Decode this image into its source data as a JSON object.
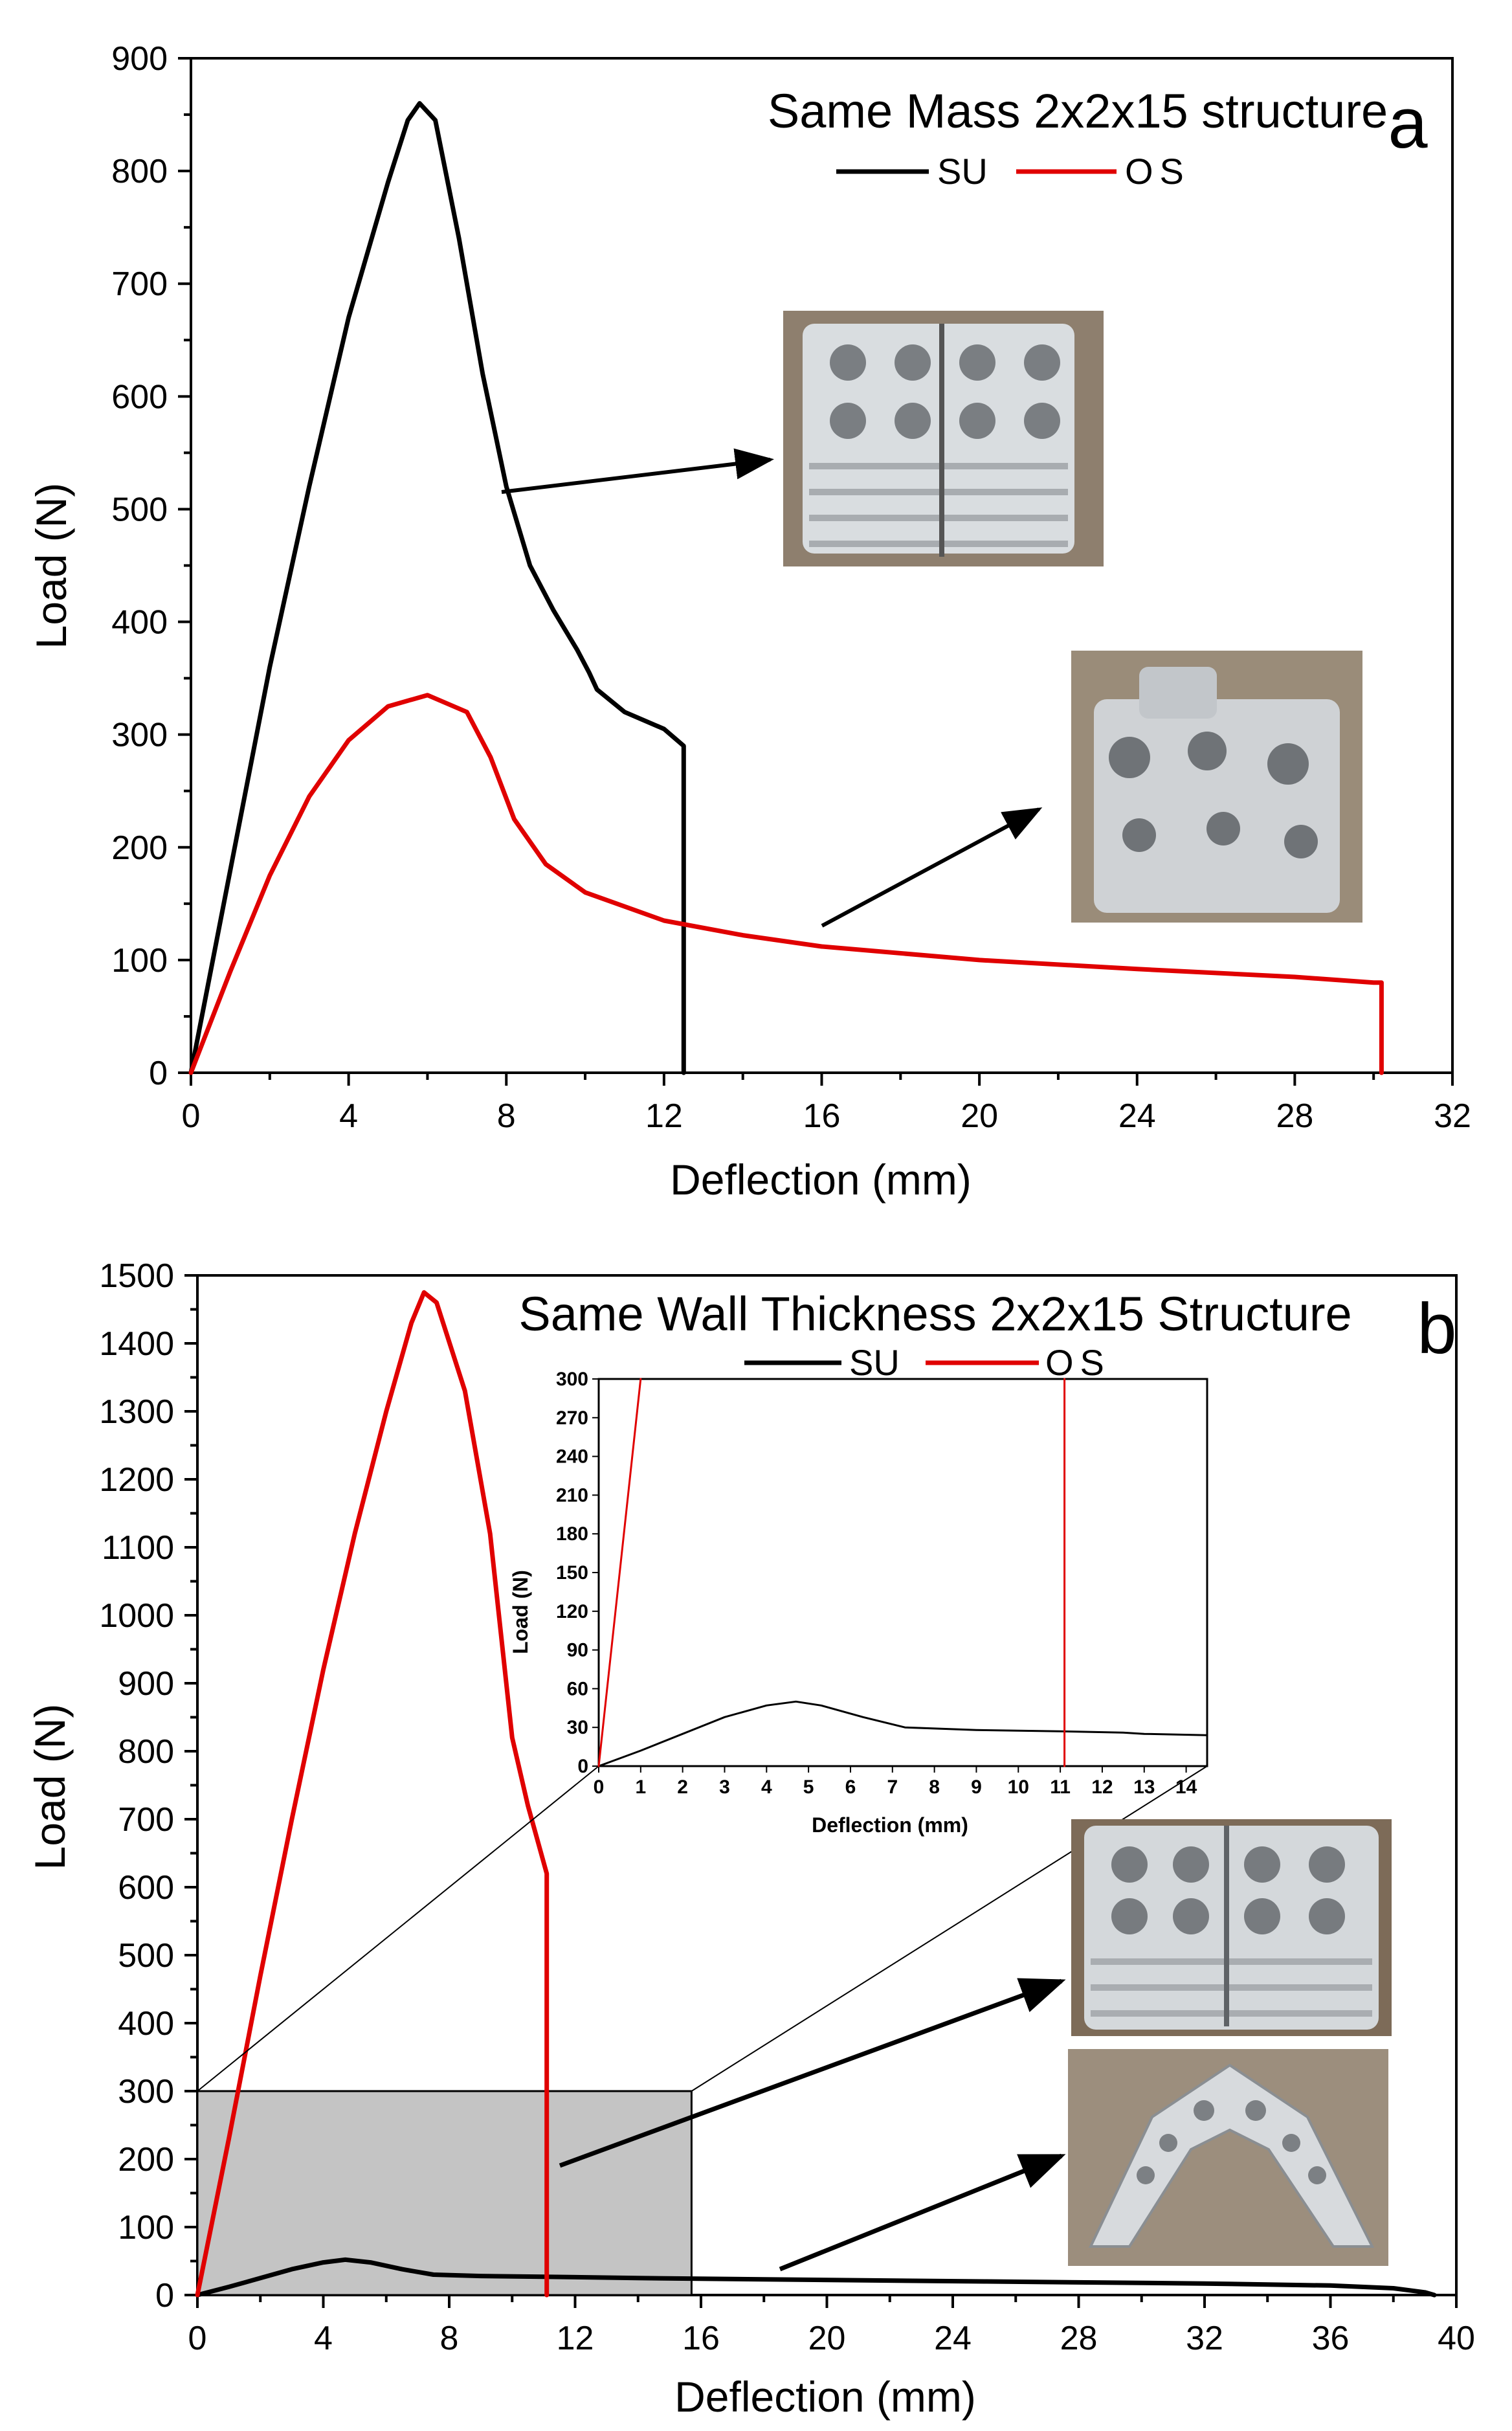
{
  "chart_data": [
    {
      "panel": "a",
      "type": "line",
      "title": "Same Mass 2x2x15 structure",
      "xlabel": "Deflection (mm)",
      "ylabel": "Load (N)",
      "xlim": [
        0,
        32
      ],
      "ylim": [
        0,
        900
      ],
      "xticks": [
        0,
        4,
        8,
        12,
        16,
        20,
        24,
        28,
        32
      ],
      "yticks": [
        0,
        100,
        200,
        300,
        400,
        500,
        600,
        700,
        800,
        900
      ],
      "legend": [
        "SU",
        "OS"
      ],
      "series": [
        {
          "name": "SU",
          "color": "#000000",
          "points": [
            [
              0,
              0
            ],
            [
              1,
              180
            ],
            [
              2,
              360
            ],
            [
              3,
              520
            ],
            [
              4,
              670
            ],
            [
              5,
              790
            ],
            [
              5.5,
              845
            ],
            [
              5.8,
              860
            ],
            [
              6.2,
              845
            ],
            [
              6.8,
              740
            ],
            [
              7.4,
              620
            ],
            [
              8,
              520
            ],
            [
              8.6,
              450
            ],
            [
              9.2,
              410
            ],
            [
              9.8,
              375
            ],
            [
              10.1,
              355
            ],
            [
              10.3,
              340
            ],
            [
              11,
              320
            ],
            [
              12,
              305
            ],
            [
              12.5,
              290
            ],
            [
              12.5,
              0
            ]
          ]
        },
        {
          "name": "OS",
          "color": "#e00000",
          "points": [
            [
              0,
              0
            ],
            [
              1,
              90
            ],
            [
              2,
              175
            ],
            [
              3,
              245
            ],
            [
              4,
              295
            ],
            [
              5,
              325
            ],
            [
              6,
              335
            ],
            [
              7,
              320
            ],
            [
              7.6,
              280
            ],
            [
              8.2,
              225
            ],
            [
              9,
              185
            ],
            [
              10,
              160
            ],
            [
              12,
              135
            ],
            [
              14,
              122
            ],
            [
              16,
              112
            ],
            [
              20,
              100
            ],
            [
              24,
              92
            ],
            [
              28,
              85
            ],
            [
              30,
              80
            ],
            [
              30.2,
              80
            ],
            [
              30.2,
              0
            ]
          ]
        }
      ]
    },
    {
      "panel": "b",
      "type": "line",
      "title": "Same Wall Thickness 2x2x15 Structure",
      "xlabel": "Deflection (mm)",
      "ylabel": "Load (N)",
      "xlim": [
        0,
        40
      ],
      "ylim": [
        0,
        1500
      ],
      "xticks": [
        0,
        4,
        8,
        12,
        16,
        20,
        24,
        28,
        32,
        36,
        40
      ],
      "yticks": [
        0,
        100,
        200,
        300,
        400,
        500,
        600,
        700,
        800,
        900,
        1000,
        1100,
        1200,
        1300,
        1400,
        1500
      ],
      "legend": [
        "SU",
        "OS"
      ],
      "zoom_region": {
        "x": [
          0,
          15.7
        ],
        "y": [
          0,
          300
        ]
      },
      "series": [
        {
          "name": "SU",
          "color": "#000000",
          "points": [
            [
              0,
              0
            ],
            [
              1,
              12
            ],
            [
              2,
              25
            ],
            [
              3,
              38
            ],
            [
              4,
              48
            ],
            [
              4.7,
              52
            ],
            [
              5.5,
              48
            ],
            [
              6.5,
              38
            ],
            [
              7.5,
              30
            ],
            [
              9,
              28
            ],
            [
              11,
              27
            ],
            [
              14,
              25
            ],
            [
              18,
              23
            ],
            [
              25,
              20
            ],
            [
              32,
              17
            ],
            [
              36,
              14
            ],
            [
              38,
              10
            ],
            [
              39,
              4
            ],
            [
              39.3,
              0
            ]
          ]
        },
        {
          "name": "OS",
          "color": "#e00000",
          "points": [
            [
              0,
              0
            ],
            [
              1,
              230
            ],
            [
              2,
              470
            ],
            [
              3,
              700
            ],
            [
              4,
              920
            ],
            [
              5,
              1120
            ],
            [
              6,
              1300
            ],
            [
              6.8,
              1430
            ],
            [
              7.2,
              1475
            ],
            [
              7.6,
              1460
            ],
            [
              8.5,
              1330
            ],
            [
              9.3,
              1120
            ],
            [
              10,
              820
            ],
            [
              10.5,
              720
            ],
            [
              11.1,
              620
            ],
            [
              11.1,
              0
            ]
          ]
        }
      ],
      "inset": {
        "xlabel": "Deflection (mm)",
        "ylabel": "Load (N)",
        "xlim": [
          0,
          14.5
        ],
        "ylim": [
          0,
          300
        ],
        "xticks": [
          0,
          1,
          2,
          3,
          4,
          5,
          6,
          7,
          8,
          9,
          10,
          11,
          12,
          13,
          14
        ],
        "yticks": [
          0,
          30,
          60,
          90,
          120,
          150,
          180,
          210,
          240,
          270,
          300
        ],
        "series": [
          {
            "name": "SU",
            "color": "#000000",
            "points": [
              [
                0,
                0
              ],
              [
                1,
                12
              ],
              [
                2,
                25
              ],
              [
                3,
                38
              ],
              [
                4,
                47
              ],
              [
                4.7,
                50
              ],
              [
                5.3,
                47
              ],
              [
                6.3,
                38
              ],
              [
                7.3,
                30
              ],
              [
                9,
                28
              ],
              [
                11,
                27
              ],
              [
                12.5,
                26
              ],
              [
                13,
                25
              ],
              [
                14.5,
                24
              ]
            ]
          },
          {
            "name": "OS",
            "color": "#e00000",
            "points": [
              [
                0,
                0
              ],
              [
                1,
                300
              ]
            ]
          },
          {
            "name": "OS-drop",
            "color": "#e00000",
            "points": [
              [
                11.1,
                300
              ],
              [
                11.1,
                0
              ]
            ]
          }
        ]
      }
    }
  ],
  "photos": {
    "a_su": "su-specimen-photo",
    "a_os": "os-specimen-photo",
    "b_su": "su-specimen-photo",
    "b_os": "os-specimen-photo"
  }
}
